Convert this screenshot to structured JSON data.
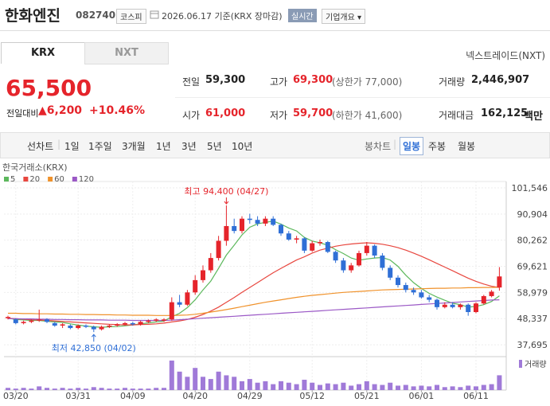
{
  "header": {
    "name": "한화엔진",
    "code": "082740",
    "market": "코스피",
    "date": "2026.06.17 기준(KRX 장마감)",
    "realtime": "실시간",
    "company": "기업개요"
  },
  "tabs": [
    "KRX",
    "NXT"
  ],
  "nxt_link": "넥스트레이드(NXT)",
  "price": {
    "current": "65,500",
    "change_label": "전일대비",
    "change": "▲6,200",
    "rate": "+10.46%"
  },
  "stats": [
    {
      "label": "전일",
      "value": "59,300"
    },
    {
      "label": "고가",
      "value": "69,300",
      "note": "(상한가 77,000)"
    },
    {
      "label": "거래량",
      "value": "2,446,907"
    },
    {
      "label": "시가",
      "value": "61,000"
    },
    {
      "label": "저가",
      "value": "59,700",
      "note": "(하한가 41,600)"
    },
    {
      "label": "거래대금",
      "value": "162,125",
      "unit": "백만"
    }
  ],
  "periods": [
    "선차트",
    "1일",
    "1주일",
    "3개월",
    "1년",
    "3년",
    "5년",
    "10년"
  ],
  "candle_periods": [
    "봉차트",
    "일봉",
    "주봉",
    "월봉"
  ],
  "chart_data": {
    "type": "candlestick",
    "source": "한국거래소(KRX)",
    "categories": [
      null,
      "03/20",
      null,
      null,
      null,
      null,
      null,
      null,
      null,
      "03/31",
      null,
      null,
      null,
      null,
      null,
      null,
      "04/09",
      null,
      null,
      null,
      null,
      null,
      null,
      null,
      "04/20",
      null,
      null,
      null,
      null,
      null,
      null,
      "04/29",
      null,
      null,
      null,
      null,
      null,
      null,
      null,
      "05/12",
      null,
      null,
      null,
      null,
      null,
      null,
      "05/21",
      null,
      null,
      null,
      null,
      null,
      null,
      "06/01",
      null,
      null,
      null,
      null,
      null,
      null,
      "06/11",
      null,
      null,
      null
    ],
    "open": [
      48500,
      48000,
      46500,
      47000,
      47500,
      48000,
      46500,
      45500,
      45500,
      44500,
      45500,
      45000,
      44000,
      45000,
      45500,
      46000,
      46500,
      46000,
      47000,
      47500,
      47500,
      48000,
      55000,
      54000,
      59000,
      64000,
      68000,
      73000,
      80000,
      86000,
      84000,
      89000,
      88500,
      87000,
      89000,
      86500,
      83000,
      80500,
      81000,
      76000,
      79000,
      79500,
      75500,
      72000,
      68000,
      70000,
      75000,
      78000,
      74000,
      69000,
      65000,
      62000,
      60000,
      59000,
      57000,
      56000,
      53000,
      54000,
      53000,
      54000,
      51000,
      54500,
      57500,
      61000
    ],
    "high": [
      49500,
      48500,
      47500,
      48000,
      52000,
      48500,
      47000,
      46500,
      46000,
      46000,
      46000,
      45500,
      45500,
      46000,
      46500,
      47000,
      47000,
      47500,
      48000,
      48500,
      48500,
      57000,
      58000,
      60000,
      66000,
      70000,
      75000,
      82000,
      94400,
      89000,
      90000,
      91000,
      90000,
      90000,
      90000,
      87000,
      84000,
      82000,
      81500,
      80000,
      80500,
      80000,
      76000,
      73000,
      71000,
      76000,
      79500,
      78500,
      75000,
      70000,
      66000,
      63000,
      61000,
      60000,
      58000,
      56500,
      55000,
      55000,
      54500,
      54500,
      55000,
      58000,
      60000,
      69300
    ],
    "low": [
      48000,
      46000,
      46000,
      46500,
      47000,
      46500,
      45000,
      44500,
      44000,
      44000,
      44500,
      42850,
      43500,
      44500,
      45000,
      45500,
      45500,
      45500,
      46500,
      47000,
      47000,
      47500,
      53000,
      53500,
      58000,
      63000,
      67000,
      72000,
      78000,
      83000,
      83000,
      87000,
      86000,
      86000,
      86000,
      82000,
      80000,
      79000,
      75000,
      75500,
      78000,
      75000,
      71000,
      67000,
      67000,
      69500,
      74000,
      73000,
      68000,
      64000,
      61000,
      59000,
      58000,
      56500,
      55000,
      52000,
      52500,
      52500,
      52000,
      49500,
      50500,
      54000,
      57000,
      59700
    ],
    "close": [
      49000,
      46500,
      47000,
      47500,
      48000,
      47000,
      45500,
      46000,
      44500,
      45500,
      45000,
      44000,
      45000,
      45500,
      46000,
      46500,
      46000,
      47000,
      47500,
      48000,
      48000,
      55000,
      54000,
      59000,
      64000,
      68000,
      73000,
      80000,
      86000,
      84000,
      89000,
      88500,
      87000,
      89000,
      86500,
      83000,
      80500,
      81000,
      76000,
      79000,
      79500,
      75500,
      72000,
      68000,
      70000,
      75000,
      78000,
      74000,
      69000,
      65000,
      62000,
      60000,
      59000,
      57000,
      56000,
      53000,
      54000,
      53000,
      54000,
      51000,
      54500,
      57500,
      59300,
      65500
    ],
    "up_color": "#e5242b",
    "down_color": "#2f6fd6",
    "series": [
      {
        "name": "5",
        "color": "#5cb85c",
        "values": [
          48500,
          48000,
          47800,
          47600,
          47600,
          47200,
          47000,
          46800,
          46200,
          45700,
          45300,
          45000,
          44800,
          45000,
          45100,
          45400,
          45800,
          46200,
          46600,
          47000,
          47300,
          49100,
          50500,
          52800,
          56000,
          60000,
          63600,
          68800,
          74200,
          78200,
          82400,
          85500,
          86900,
          87500,
          88000,
          86800,
          85200,
          84000,
          81400,
          79900,
          79200,
          78200,
          76400,
          74800,
          73000,
          72100,
          72600,
          73000,
          73200,
          72200,
          69600,
          66000,
          63000,
          60600,
          58600,
          57100,
          55800,
          54600,
          54000,
          53000,
          53300,
          54000,
          55300,
          57600
        ]
      },
      {
        "name": "20",
        "color": "#e8473f",
        "values": [
          48500,
          48300,
          48100,
          47900,
          47800,
          47600,
          47400,
          47200,
          47000,
          46800,
          46600,
          46400,
          46200,
          46000,
          45900,
          45800,
          45800,
          45900,
          46000,
          46200,
          46500,
          47000,
          47400,
          48000,
          48900,
          50000,
          51400,
          53000,
          55000,
          56900,
          59000,
          61000,
          63000,
          65000,
          67000,
          68800,
          70500,
          72200,
          73500,
          75000,
          76200,
          77000,
          77800,
          78300,
          78700,
          79000,
          79200,
          79000,
          78600,
          78000,
          77200,
          76200,
          75000,
          73700,
          72300,
          70800,
          69300,
          67800,
          66300,
          64800,
          63500,
          62400,
          61500,
          61000
        ]
      },
      {
        "name": "60",
        "color": "#f0922b",
        "values": [
          50500,
          50500,
          50400,
          50400,
          50300,
          50300,
          50200,
          50200,
          50100,
          50100,
          50000,
          50000,
          49900,
          49900,
          49800,
          49800,
          49700,
          49700,
          49700,
          49600,
          49600,
          49600,
          49700,
          49800,
          50100,
          50500,
          51000,
          51500,
          52000,
          52600,
          53200,
          53800,
          54400,
          55000,
          55500,
          56000,
          56500,
          57000,
          57400,
          57800,
          58100,
          58400,
          58700,
          59000,
          59200,
          59400,
          59600,
          59800,
          60000,
          60100,
          60200,
          60300,
          60400,
          60500,
          60600,
          60700,
          60700,
          60800,
          60800,
          60900,
          60900,
          61000,
          61000,
          61100
        ]
      },
      {
        "name": "120",
        "color": "#9b59c6",
        "values": [
          48300,
          48300,
          48200,
          48200,
          48100,
          48100,
          48000,
          48000,
          47900,
          47900,
          47800,
          47800,
          47800,
          47700,
          47700,
          47700,
          47600,
          47600,
          47600,
          47600,
          47600,
          47700,
          47900,
          48100,
          48300,
          48500,
          48700,
          48900,
          49100,
          49300,
          49500,
          49700,
          49900,
          50100,
          50300,
          50500,
          50700,
          50900,
          51100,
          51300,
          51500,
          51700,
          51900,
          52100,
          52300,
          52500,
          52700,
          52900,
          53100,
          53300,
          53500,
          53700,
          53900,
          54100,
          54300,
          54500,
          54700,
          54900,
          55100,
          55300,
          55500,
          55700,
          55900,
          56000
        ]
      }
    ],
    "volume": {
      "name": "거래량",
      "color": "#a07ad8",
      "ylim": [
        0,
        5000000
      ],
      "values": [
        366000,
        244000,
        366000,
        244000,
        610000,
        366000,
        244000,
        366000,
        244000,
        366000,
        244000,
        488000,
        366000,
        244000,
        244000,
        366000,
        244000,
        244000,
        244000,
        366000,
        366000,
        4880000,
        3050000,
        2196000,
        3660000,
        2196000,
        1830000,
        3050000,
        2440000,
        2196000,
        1464000,
        1830000,
        1220000,
        1464000,
        976000,
        1464000,
        1220000,
        976000,
        1708000,
        1220000,
        854000,
        1098000,
        976000,
        1220000,
        732000,
        976000,
        1464000,
        976000,
        854000,
        1220000,
        732000,
        854000,
        610000,
        732000,
        610000,
        854000,
        488000,
        610000,
        488000,
        732000,
        610000,
        854000,
        976000,
        2446907
      ]
    },
    "high_label": "최고 94,400 (04/27)",
    "low_label": "최저 42,850 (04/02)",
    "ylim": [
      32860,
      104130
    ],
    "yticks": [
      {
        "value": 101546,
        "label": "101,546"
      },
      {
        "value": 90904,
        "label": "90,904"
      },
      {
        "value": 80262,
        "label": "80,262"
      },
      {
        "value": 69621,
        "label": "69,621"
      },
      {
        "value": 58979,
        "label": "58,979"
      },
      {
        "value": 48337,
        "label": "48,337"
      },
      {
        "value": 37695,
        "label": "37,695"
      }
    ],
    "grid": true
  }
}
